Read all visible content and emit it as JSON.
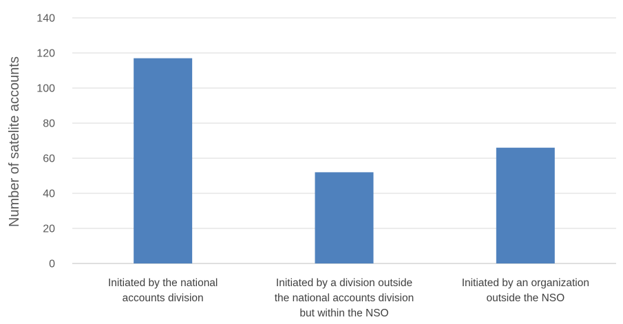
{
  "chart_data": {
    "type": "bar",
    "categories": [
      [
        "Initiated by the national",
        "accounts division"
      ],
      [
        "Initiated by a division outside",
        "the national accounts division",
        "but within the NSO"
      ],
      [
        "Initiated by an organization",
        "outside the NSO"
      ]
    ],
    "values": [
      117,
      52,
      66
    ],
    "xlabel": "",
    "ylabel": "Number of satelite accounts",
    "ylim": [
      0,
      140
    ],
    "yticks": [
      0,
      20,
      40,
      60,
      80,
      100,
      120,
      140
    ],
    "grid": true,
    "colors": {
      "bar": "#4F81BD",
      "grid": "#D9D9D9",
      "axis": "#BFBFBF",
      "text": "#595959"
    }
  }
}
